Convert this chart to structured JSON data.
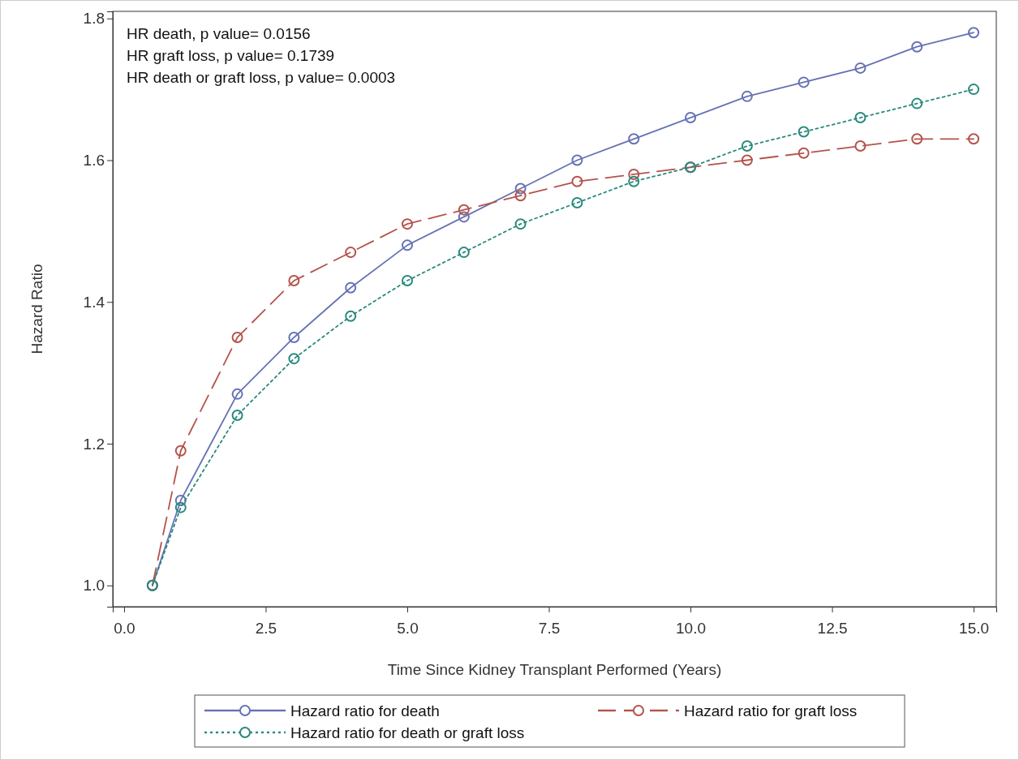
{
  "chart_data": {
    "type": "line",
    "xlabel": "Time Since Kidney Transplant Performed (Years)",
    "ylabel": "Hazard Ratio",
    "annotations": [
      "HR death, p value= 0.0156",
      "HR graft loss, p value= 0.1739",
      "HR death or graft loss, p value= 0.0003"
    ],
    "x": [
      0.5,
      1,
      2,
      3,
      4,
      5,
      6,
      7,
      8,
      9,
      10,
      11,
      12,
      13,
      14,
      15
    ],
    "series": [
      {
        "name": "Hazard ratio for death",
        "color": "#6672b4",
        "line_style": "solid",
        "values": [
          1.0,
          1.12,
          1.27,
          1.35,
          1.42,
          1.48,
          1.52,
          1.56,
          1.6,
          1.63,
          1.66,
          1.69,
          1.71,
          1.73,
          1.76,
          1.78
        ]
      },
      {
        "name": "Hazard ratio for graft loss",
        "color": "#b4534b",
        "line_style": "dashed",
        "values": [
          1.0,
          1.19,
          1.35,
          1.43,
          1.47,
          1.51,
          1.53,
          1.55,
          1.57,
          1.58,
          1.59,
          1.6,
          1.61,
          1.62,
          1.63,
          1.63
        ]
      },
      {
        "name": "Hazard ratio for death or graft loss",
        "color": "#29897d",
        "line_style": "dotted",
        "values": [
          1.0,
          1.11,
          1.24,
          1.32,
          1.38,
          1.43,
          1.47,
          1.51,
          1.54,
          1.57,
          1.59,
          1.62,
          1.64,
          1.66,
          1.68,
          1.7
        ]
      }
    ],
    "xlim": [
      -0.2,
      15.4
    ],
    "xticks": [
      {
        "value": 0,
        "label": "0.0"
      },
      {
        "value": 2.5,
        "label": "2.5"
      },
      {
        "value": 5,
        "label": "5.0"
      },
      {
        "value": 7.5,
        "label": "7.5"
      },
      {
        "value": 10,
        "label": "10.0"
      },
      {
        "value": 12.5,
        "label": "12.5"
      },
      {
        "value": 15,
        "label": "15.0"
      }
    ],
    "ylim": [
      0.97,
      1.81
    ],
    "yticks": [
      {
        "value": 1,
        "label": "1.0"
      },
      {
        "value": 1.2,
        "label": "1.2"
      },
      {
        "value": 1.4,
        "label": "1.4"
      },
      {
        "value": 1.6,
        "label": "1.6"
      },
      {
        "value": 1.8,
        "label": "1.8"
      }
    ],
    "grid": false,
    "legend": "bottom",
    "marker": "circle"
  }
}
